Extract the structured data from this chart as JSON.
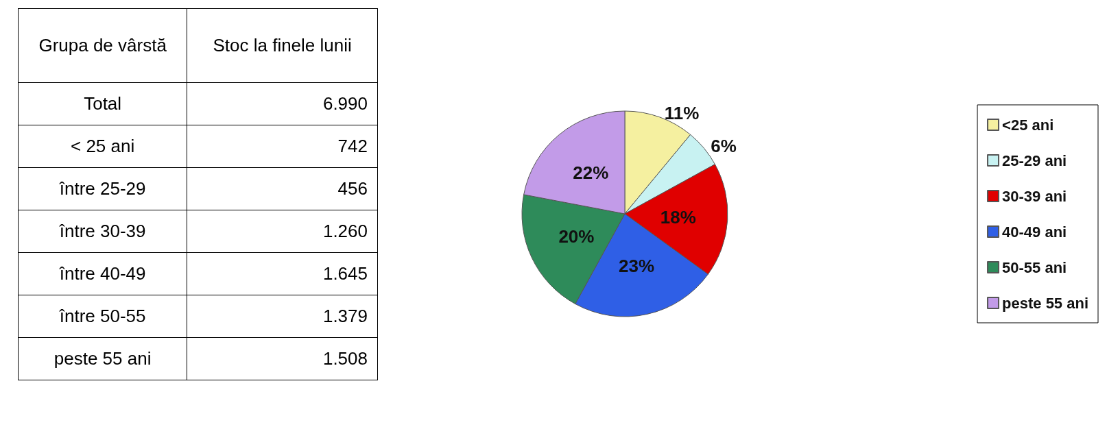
{
  "chart_data": [
    {
      "type": "other",
      "xlabel": "Grupa de vârstă",
      "ylabel": "Stoc la finele lunii",
      "categories": [
        "Total",
        "< 25 ani",
        "între 25-29",
        "între 30-39",
        "între 40-49",
        "între 50-55",
        "peste 55 ani"
      ],
      "value_labels": [
        "6.990",
        "742",
        "456",
        "1.260",
        "1.645",
        "1.379",
        "1.508"
      ]
    },
    {
      "type": "pie",
      "categories": [
        "<25 ani",
        "25-29 ani",
        "30-39 ani",
        "40-49 ani",
        "50-55 ani",
        "peste 55 ani"
      ],
      "values": [
        11,
        6,
        18,
        23,
        20,
        22
      ],
      "value_labels": [
        "11%",
        "6%",
        "18%",
        "23%",
        "20%",
        "22%"
      ],
      "colors": [
        "#f5f0a0",
        "#c8f2f2",
        "#e00000",
        "#2f5fe6",
        "#2e8b5a",
        "#c29be8"
      ],
      "legend": "right"
    }
  ]
}
